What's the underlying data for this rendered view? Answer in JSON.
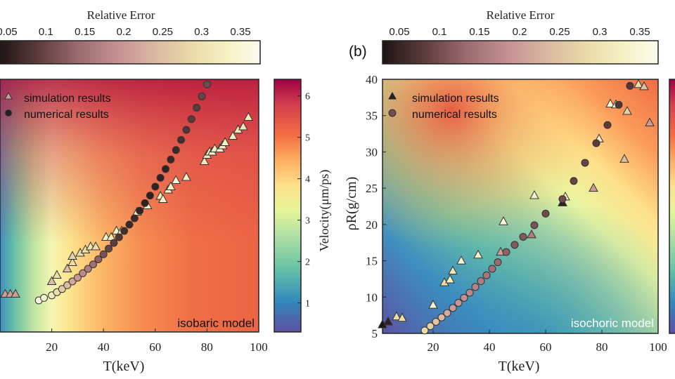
{
  "colors": {
    "relative_error_scale": [
      "#1e1414",
      "#5c3b3b",
      "#9a6a6e",
      "#c48f90",
      "#dbb9a2",
      "#ecdca8",
      "#f5f2c5",
      "#fbfbee"
    ],
    "velocity_scale": [
      "#5e4fa2",
      "#3288bd",
      "#66c2a5",
      "#abdda4",
      "#e6f598",
      "#fee08b",
      "#fdae61",
      "#f46d43",
      "#d53e4f",
      "#9e0142"
    ],
    "triangle_outline": "#333333",
    "circle_outline": "#333333"
  },
  "chart_data": [
    {
      "type": "scatter",
      "panel_label": "",
      "xlabel": "T(keV)",
      "ylabel": "",
      "xticks": [
        20,
        40,
        60,
        80,
        100
      ],
      "xlim": [
        0,
        100
      ],
      "ylim": [
        0,
        40
      ],
      "model_label": "isobaric model",
      "relative_error_bar": {
        "title": "Relative Error",
        "ticks": [
          "0.05",
          "0.1",
          "0.15",
          "0.2",
          "0.25",
          "0.3",
          "0.35"
        ]
      },
      "velocity_bar": {
        "label": "Velocity(μm/ps)",
        "ticks": [
          "1",
          "2",
          "3",
          "4",
          "5",
          "6"
        ]
      },
      "legend": {
        "placement": "top-left",
        "entries": [
          "simulation results",
          "numerical results"
        ]
      },
      "series": [
        {
          "name": "simulation results",
          "marker": "triangle",
          "x": [
            2,
            4,
            6,
            20,
            22,
            26,
            28,
            28,
            31,
            33,
            35,
            37,
            41,
            43,
            45,
            47,
            53,
            57,
            62,
            63,
            65,
            66,
            68,
            72,
            79,
            80,
            81,
            82,
            83,
            85,
            86,
            87,
            90,
            92,
            94,
            96
          ],
          "y": [
            6.0,
            6.0,
            6.0,
            8.0,
            9.0,
            10.0,
            11.0,
            12.0,
            12.5,
            13.0,
            13.5,
            13.5,
            15.0,
            15.0,
            16.0,
            16.0,
            19.0,
            20.0,
            21.5,
            21.0,
            22.5,
            23.0,
            24.0,
            24.5,
            27.0,
            28.0,
            28.5,
            28.5,
            29.0,
            29.0,
            29.5,
            30.0,
            31.0,
            32.0,
            32.5,
            34.0
          ],
          "errors": [
            0.2,
            0.2,
            0.2,
            0.25,
            0.3,
            0.25,
            0.3,
            0.28,
            0.3,
            0.3,
            0.32,
            0.3,
            0.35,
            0.33,
            0.35,
            0.35,
            0.36,
            0.35,
            0.33,
            0.36,
            0.35,
            0.35,
            0.36,
            0.35,
            0.33,
            0.34,
            0.35,
            0.35,
            0.34,
            0.36,
            0.35,
            0.35,
            0.34,
            0.33,
            0.32,
            0.34
          ]
        },
        {
          "name": "numerical results",
          "marker": "circle",
          "x": [
            15,
            17,
            20,
            22,
            24,
            26,
            28,
            30,
            32,
            34,
            36,
            38,
            40,
            42,
            44,
            46,
            48,
            50,
            52,
            54,
            56,
            58,
            60,
            62,
            64,
            66,
            68,
            70,
            72,
            74,
            76,
            78,
            80
          ],
          "y": [
            5.0,
            5.4,
            5.8,
            6.3,
            6.8,
            7.4,
            8.0,
            8.6,
            9.3,
            10.0,
            10.7,
            11.5,
            12.3,
            13.2,
            14.1,
            15.0,
            16.0,
            17.0,
            18.0,
            19.2,
            20.4,
            21.6,
            23.0,
            24.4,
            25.8,
            27.3,
            28.8,
            30.4,
            32.0,
            33.7,
            35.5,
            37.3,
            39.2
          ],
          "errors": [
            0.38,
            0.36,
            0.33,
            0.3,
            0.27,
            0.24,
            0.21,
            0.19,
            0.17,
            0.15,
            0.13,
            0.11,
            0.09,
            0.07,
            0.06,
            0.05,
            0.04,
            0.03,
            0.03,
            0.02,
            0.02,
            0.02,
            0.02,
            0.02,
            0.02,
            0.03,
            0.03,
            0.04,
            0.05,
            0.06,
            0.06,
            0.07,
            0.08
          ]
        }
      ]
    },
    {
      "type": "scatter",
      "panel_label": "(b)",
      "xlabel": "T(keV)",
      "ylabel": "ρR(g/cm)",
      "xticks": [
        20,
        40,
        60,
        80,
        100
      ],
      "yticks": [
        5,
        10,
        15,
        20,
        25,
        30,
        35,
        40
      ],
      "xlim": [
        0,
        100
      ],
      "ylim": [
        5,
        40
      ],
      "model_label": "isochoric model",
      "relative_error_bar": {
        "title": "Relative Error",
        "ticks": [
          "0.05",
          "0.1",
          "0.15",
          "0.2",
          "0.25",
          "0.3",
          "0.35"
        ]
      },
      "legend": {
        "placement": "top-left",
        "entries": [
          "simulation results",
          "numerical results"
        ]
      },
      "series": [
        {
          "name": "simulation results",
          "marker": "triangle",
          "x": [
            2,
            4,
            7,
            9,
            20,
            24,
            26,
            27,
            30,
            36,
            44,
            45,
            55,
            56,
            66,
            67,
            77,
            79,
            83,
            85,
            88,
            89,
            93,
            95,
            97
          ],
          "y": [
            6.2,
            6.6,
            7.3,
            7.1,
            8.9,
            12.0,
            12.4,
            13.6,
            15.0,
            15.8,
            16.2,
            20.4,
            18.6,
            24.0,
            23.0,
            23.8,
            25.0,
            31.8,
            36.6,
            36.5,
            29.0,
            35.6,
            39.3,
            39.0,
            34.0
          ],
          "errors": [
            0.0,
            0.02,
            0.3,
            0.3,
            0.35,
            0.3,
            0.35,
            0.32,
            0.37,
            0.35,
            0.2,
            0.38,
            0.15,
            0.36,
            0.02,
            0.35,
            0.2,
            0.33,
            0.37,
            0.35,
            0.25,
            0.28,
            0.3,
            0.25,
            0.2
          ]
        },
        {
          "name": "numerical results",
          "marker": "circle",
          "x": [
            17,
            19,
            21,
            23,
            25,
            27,
            29,
            31,
            33,
            35,
            37,
            39,
            41,
            43,
            46,
            49,
            52,
            56,
            60,
            66,
            70,
            74,
            78,
            82,
            86,
            90
          ],
          "y": [
            5.4,
            6.0,
            6.6,
            7.2,
            7.8,
            8.5,
            9.2,
            9.9,
            10.6,
            11.4,
            12.2,
            13.0,
            13.9,
            14.8,
            16.2,
            17.2,
            18.3,
            19.9,
            21.5,
            23.5,
            26.0,
            28.5,
            31.2,
            33.7,
            36.5,
            39.1
          ],
          "errors": [
            0.3,
            0.28,
            0.26,
            0.24,
            0.22,
            0.2,
            0.19,
            0.18,
            0.17,
            0.16,
            0.15,
            0.14,
            0.13,
            0.12,
            0.11,
            0.1,
            0.1,
            0.09,
            0.08,
            0.08,
            0.07,
            0.07,
            0.06,
            0.06,
            0.05,
            0.05
          ]
        }
      ]
    }
  ]
}
